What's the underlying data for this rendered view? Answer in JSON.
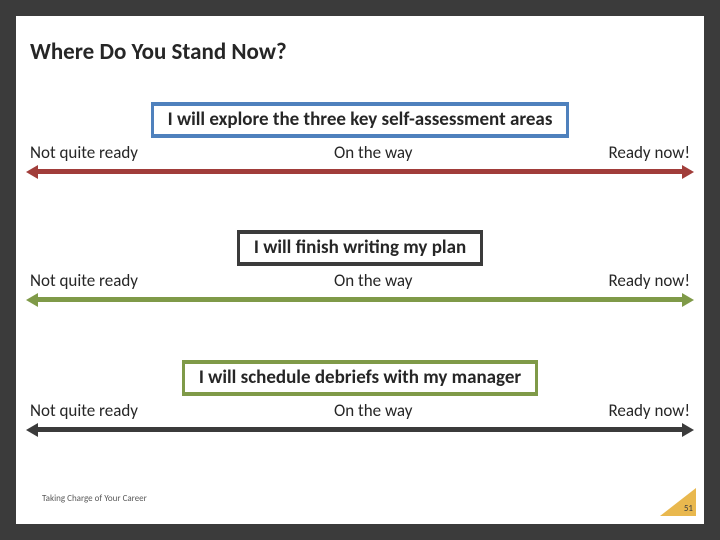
{
  "title": "Where Do You Stand Now?",
  "sections": [
    {
      "statement": "I will explore the three key self-assessment areas",
      "border_color": "#4f81bd",
      "arrow_color": "#a13d3a",
      "labels": {
        "left": "Not quite ready",
        "center": "On the way",
        "right": "Ready now!"
      }
    },
    {
      "statement": "I will finish writing my plan",
      "border_color": "#3b3b3b",
      "arrow_color": "#7f9a48",
      "labels": {
        "left": "Not quite ready",
        "center": "On the way",
        "right": "Ready now!"
      }
    },
    {
      "statement": "I will schedule debriefs with my manager",
      "border_color": "#7f9a48",
      "arrow_color": "#3b3b3b",
      "labels": {
        "left": "Not quite ready",
        "center": "On the way",
        "right": "Ready now!"
      }
    }
  ],
  "footer": "Taking Charge of Your Career",
  "page_number": "51",
  "page_marker_color": "#e9b84e",
  "background_outer": "#3b3b3b",
  "background_inner": "#ffffff",
  "title_fontsize": 23,
  "statement_fontsize": 19,
  "label_fontsize": 17,
  "footer_fontsize": 9
}
